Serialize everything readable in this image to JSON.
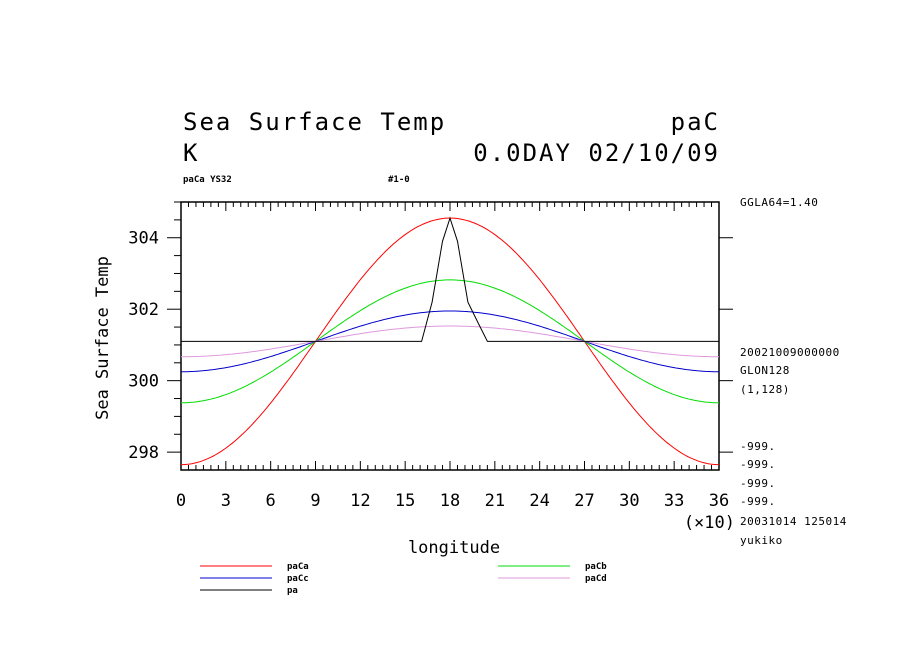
{
  "header": {
    "title": "Sea Surface Temp",
    "variable": "paC",
    "units": "K",
    "time_label": "0.0DAY 02/10/09",
    "run_label": "paCa YS32",
    "member_label": "#1-0"
  },
  "side_info": {
    "lat_label": "GGLA64=1.40",
    "date_code": "20021009000000",
    "lon_label": "GLON128",
    "index_range": "(1,128)",
    "missing_1": "-999.",
    "missing_2": "-999.",
    "missing_3": "-999.",
    "missing_4": "-999.",
    "created": "20031014 125014",
    "user": "yukiko"
  },
  "chart_data": {
    "type": "line",
    "title": "Sea Surface Temp",
    "xlabel": "longitude",
    "ylabel": "Sea Surface Temp",
    "x_multiplier": "(×10)",
    "xlim": [
      0,
      36
    ],
    "ylim": [
      297.5,
      305.0
    ],
    "xticks": [
      "0",
      "3",
      "6",
      "9",
      "12",
      "15",
      "18",
      "21",
      "24",
      "27",
      "30",
      "33",
      "36"
    ],
    "yticks": [
      "298",
      "300",
      "302",
      "304"
    ],
    "series": [
      {
        "name": "paCa",
        "color": "#ff0000",
        "kind": "cos",
        "mean": 301.1,
        "amplitude": 3.45
      },
      {
        "name": "paCb",
        "color": "#00dd00",
        "kind": "cos",
        "mean": 301.1,
        "amplitude": 1.72
      },
      {
        "name": "paCc",
        "color": "#0000cc",
        "kind": "cos",
        "mean": 301.1,
        "amplitude": 0.85
      },
      {
        "name": "paCd",
        "color": "#dd99dd",
        "kind": "cos",
        "mean": 301.1,
        "amplitude": 0.43
      },
      {
        "name": "pa",
        "color": "#000000",
        "kind": "points",
        "x": [
          0,
          16.1,
          16.8,
          17.5,
          18.0,
          18.5,
          19.2,
          19.9,
          20.5,
          36
        ],
        "y": [
          301.1,
          301.1,
          302.2,
          303.9,
          304.55,
          303.9,
          302.2,
          301.6,
          301.1,
          301.1
        ]
      }
    ]
  }
}
